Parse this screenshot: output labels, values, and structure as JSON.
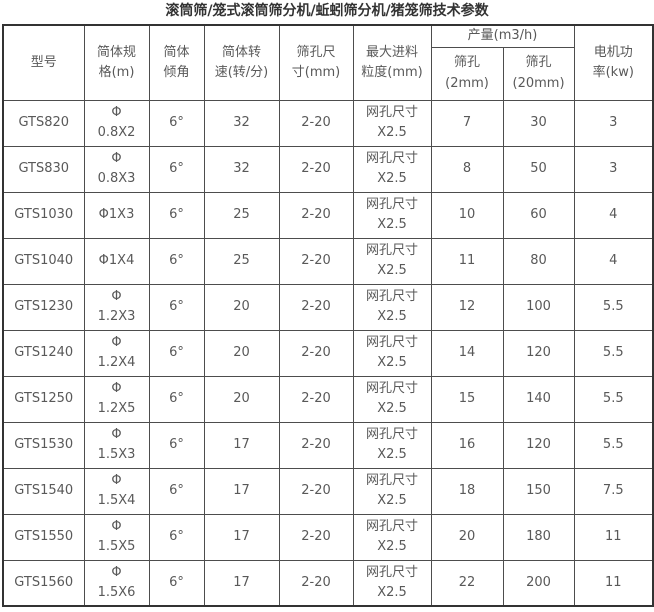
{
  "title": "滚筒筛/笼式滚筒筛分机/蚯蚓筛分机/猪笼筛技术参数",
  "colors": {
    "title_text": "#333333",
    "cell_text": "#595959",
    "grid_border": "#4d4d4d",
    "outer_border": "#333333",
    "background": "#ffffff"
  },
  "table": {
    "headers": {
      "model": "型号",
      "spec": [
        "简体规",
        "格(m)"
      ],
      "incline": [
        "简体",
        "倾角"
      ],
      "speed": [
        "简体转",
        "速(转/分)"
      ],
      "hole": [
        "筛孔尺",
        "寸(mm)"
      ],
      "feed": [
        "最大进料",
        "粒度(mm)"
      ],
      "output_group": "产量(m3/h)",
      "output_2mm": [
        "筛孔",
        "(2mm)"
      ],
      "output_20mm": [
        "筛孔",
        "(20mm)"
      ],
      "power": [
        "电机功",
        "率(kw)"
      ]
    },
    "rows": [
      {
        "model": "GTS820",
        "spec": [
          "Φ",
          "0.8X2"
        ],
        "incline": "6°",
        "speed": "32",
        "hole": "2-20",
        "feed": [
          "网孔尺寸",
          "X2.5"
        ],
        "output_2mm": "7",
        "output_20mm": "30",
        "power": "3"
      },
      {
        "model": "GTS830",
        "spec": [
          "Φ",
          "0.8X3"
        ],
        "incline": "6°",
        "speed": "32",
        "hole": "2-20",
        "feed": [
          "网孔尺寸",
          "X2.5"
        ],
        "output_2mm": "8",
        "output_20mm": "50",
        "power": "3"
      },
      {
        "model": "GTS1030",
        "spec": "Φ1X3",
        "incline": "6°",
        "speed": "25",
        "hole": "2-20",
        "feed": [
          "网孔尺寸",
          "X2.5"
        ],
        "output_2mm": "10",
        "output_20mm": "60",
        "power": "4"
      },
      {
        "model": "GTS1040",
        "spec": "Φ1X4",
        "incline": "6°",
        "speed": "25",
        "hole": "2-20",
        "feed": [
          "网孔尺寸",
          "X2.5"
        ],
        "output_2mm": "11",
        "output_20mm": "80",
        "power": "4"
      },
      {
        "model": "GTS1230",
        "spec": [
          "Φ",
          "1.2X3"
        ],
        "incline": "6°",
        "speed": "20",
        "hole": "2-20",
        "feed": [
          "网孔尺寸",
          "X2.5"
        ],
        "output_2mm": "12",
        "output_20mm": "100",
        "power": "5.5"
      },
      {
        "model": "GTS1240",
        "spec": [
          "Φ",
          "1.2X4"
        ],
        "incline": "6°",
        "speed": "20",
        "hole": "2-20",
        "feed": [
          "网孔尺寸",
          "X2.5"
        ],
        "output_2mm": "14",
        "output_20mm": "120",
        "power": "5.5"
      },
      {
        "model": "GTS1250",
        "spec": [
          "Φ",
          "1.2X5"
        ],
        "incline": "6°",
        "speed": "20",
        "hole": "2-20",
        "feed": [
          "网孔尺寸",
          "X2.5"
        ],
        "output_2mm": "15",
        "output_20mm": "140",
        "power": "5.5"
      },
      {
        "model": "GTS1530",
        "spec": [
          "Φ",
          "1.5X3"
        ],
        "incline": "6°",
        "speed": "17",
        "hole": "2-20",
        "feed": [
          "网孔尺寸",
          "X2.5"
        ],
        "output_2mm": "16",
        "output_20mm": "120",
        "power": "5.5"
      },
      {
        "model": "GTS1540",
        "spec": [
          "Φ",
          "1.5X4"
        ],
        "incline": "6°",
        "speed": "17",
        "hole": "2-20",
        "feed": [
          "网孔尺寸",
          "X2.5"
        ],
        "output_2mm": "18",
        "output_20mm": "150",
        "power": "7.5"
      },
      {
        "model": "GTS1550",
        "spec": [
          "Φ",
          "1.5X5"
        ],
        "incline": "6°",
        "speed": "17",
        "hole": "2-20",
        "feed": [
          "网孔尺寸",
          "X2.5"
        ],
        "output_2mm": "20",
        "output_20mm": "180",
        "power": "11"
      },
      {
        "model": "GTS1560",
        "spec": [
          "Φ",
          "1.5X6"
        ],
        "incline": "6°",
        "speed": "17",
        "hole": "2-20",
        "feed": [
          "网孔尺寸",
          "X2.5"
        ],
        "output_2mm": "22",
        "output_20mm": "200",
        "power": "11"
      }
    ]
  }
}
